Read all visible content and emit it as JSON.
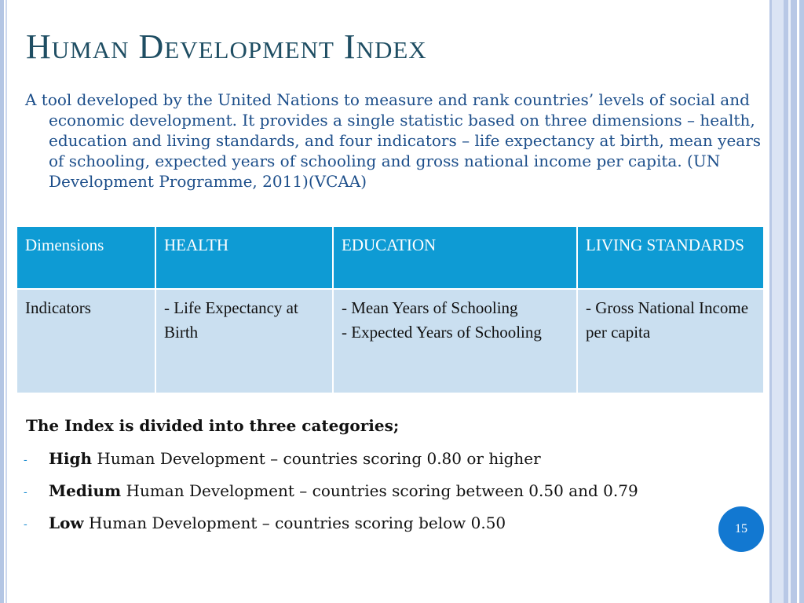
{
  "title": "Human Development Index",
  "intro": "A tool developed by the United Nations to measure and rank countries’ levels of social and economic development. It provides a single statistic based on three dimensions – health, education and living standards, and four indicators – life expectancy at birth, mean years of schooling, expected years of schooling and gross national income per capita. (UN Development Programme, 2011)(VCAA)",
  "table": {
    "headers": [
      "Dimensions",
      "HEALTH",
      "EDUCATION",
      "LIVING STANDARDS"
    ],
    "row": {
      "label": "Indicators",
      "health": "- Life Expectancy at Birth",
      "education_1": "- Mean Years of Schooling",
      "education_2": "- Expected Years of Schooling",
      "living": "- Gross National Income per capita"
    }
  },
  "categories": {
    "heading": "The Index is divided into three categories;",
    "bullet": "-",
    "items": [
      {
        "bold": "High",
        "rest": " Human Development – countries scoring 0.80 or higher"
      },
      {
        "bold": "Medium",
        "rest": " Human Development – countries scoring between 0.50 and 0.79"
      },
      {
        "bold": "Low",
        "rest": " Human Development – countries scoring below 0.50"
      }
    ]
  },
  "slide_number": "15",
  "colors": {
    "title": "#1f4e63",
    "intro_text": "#1c4e8a",
    "table_header_bg": "#0e9bd4",
    "table_body_bg": "#cadff0",
    "slide_number_bg": "#1278d1"
  }
}
